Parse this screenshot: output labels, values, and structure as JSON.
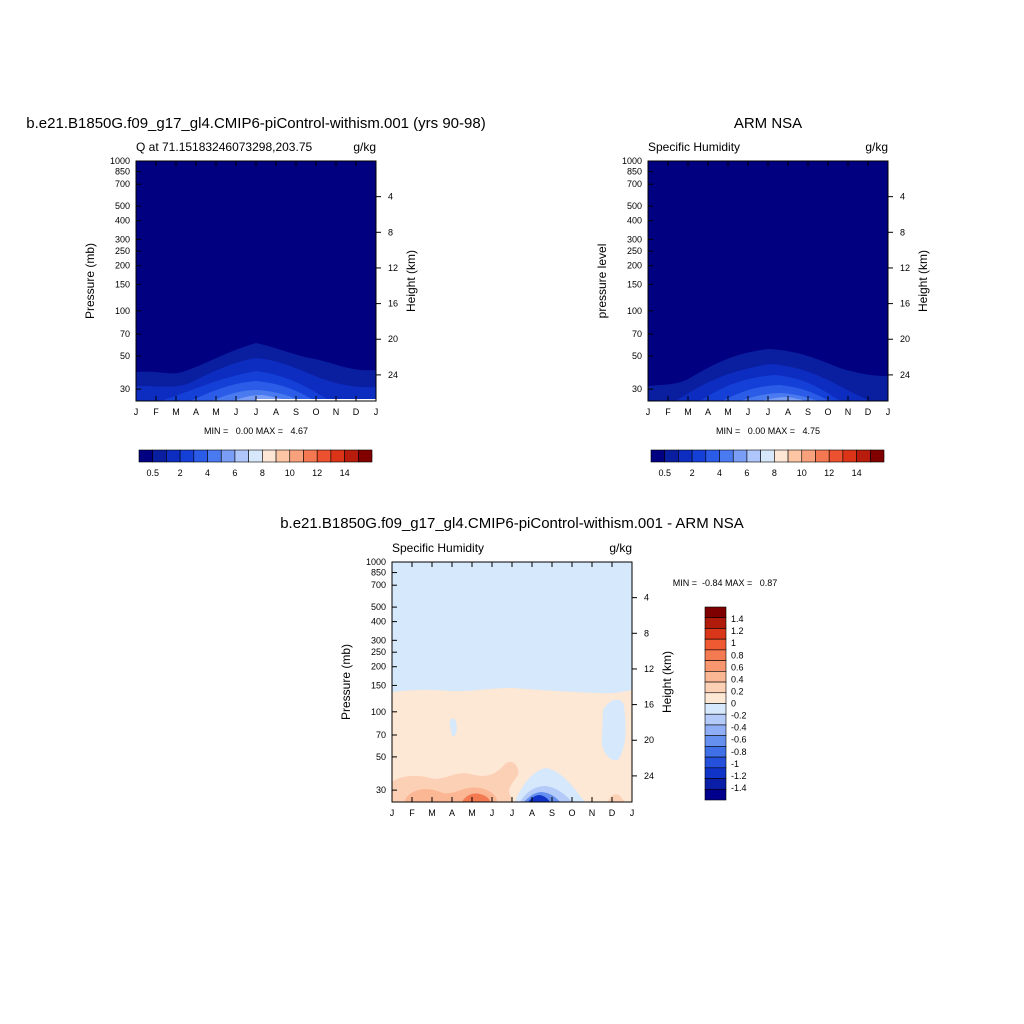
{
  "colors": {
    "abs_levels": [
      "#000080",
      "#0a1ea0",
      "#0d2cc0",
      "#1540d8",
      "#2b5ce8",
      "#4a7af0",
      "#7a9ef5",
      "#aec6fa",
      "#d8e8fb",
      "#fde6d4",
      "#fcc6a4",
      "#f9a07c",
      "#f47852",
      "#ed5230",
      "#dc3418",
      "#b81c0c",
      "#800000"
    ],
    "diff_levels": [
      "#00008c",
      "#0a1ea8",
      "#1033c8",
      "#2450dc",
      "#4070e8",
      "#6690f0",
      "#90aef5",
      "#b4caf8",
      "#d6e8fb",
      "#fde7d5",
      "#fcd0b4",
      "#fbb694",
      "#f89670",
      "#f47a52",
      "#ef5a32",
      "#d9361a",
      "#b01b0c",
      "#7e0000"
    ]
  },
  "panels": {
    "model": {
      "title": "b.e21.B1850G.f09_g17_gl4.CMIP6-piControl-withism.001 (yrs 90-98)",
      "left_string": "Q at 71.15183246073298,203.75",
      "right_string": "g/kg",
      "ylabel": "Pressure (mb)",
      "ylabel_right": "Height (km)",
      "minmax": "MIN =   0.00 MAX =   4.67"
    },
    "obs": {
      "title": "ARM NSA",
      "left_string": "Specific Humidity",
      "right_string": "g/kg",
      "ylabel": "pressure level",
      "ylabel_right": "Height (km)",
      "minmax": "MIN =   0.00 MAX =   4.75"
    },
    "diff": {
      "title": "b.e21.B1850G.f09_g17_gl4.CMIP6-piControl-withism.001 - ARM NSA",
      "left_string": "Specific Humidity",
      "right_string": "g/kg",
      "ylabel": "Pressure (mb)",
      "ylabel_right": "Height (km)",
      "minmax": "MIN =  -0.84 MAX =   0.87"
    }
  },
  "chart_data": [
    {
      "type": "heatmap",
      "panel": "model",
      "variable": "Specific Humidity",
      "units": "g/kg",
      "x_ticks": [
        "J",
        "F",
        "M",
        "A",
        "M",
        "J",
        "J",
        "A",
        "S",
        "O",
        "N",
        "D",
        "J"
      ],
      "y_ticks_pressure": [
        30,
        50,
        70,
        100,
        150,
        200,
        250,
        300,
        400,
        500,
        700,
        850,
        1000
      ],
      "y_ticks_height": [
        24,
        20,
        16,
        12,
        8,
        4
      ],
      "ylim": [
        1000,
        25
      ],
      "y_scale": "log",
      "colorbar_labels": [
        "0.5",
        "2",
        "4",
        "6",
        "8",
        "10",
        "12",
        "14"
      ],
      "min": 0.0,
      "max": 4.67
    },
    {
      "type": "heatmap",
      "panel": "obs",
      "variable": "Specific Humidity",
      "units": "g/kg",
      "x_ticks": [
        "J",
        "F",
        "M",
        "A",
        "M",
        "J",
        "J",
        "A",
        "S",
        "O",
        "N",
        "D",
        "J"
      ],
      "y_ticks_pressure": [
        30,
        50,
        70,
        100,
        150,
        200,
        250,
        300,
        400,
        500,
        700,
        850,
        1000
      ],
      "y_ticks_height": [
        24,
        20,
        16,
        12,
        8,
        4
      ],
      "ylim": [
        1000,
        25
      ],
      "y_scale": "log",
      "colorbar_labels": [
        "0.5",
        "2",
        "4",
        "6",
        "8",
        "10",
        "12",
        "14"
      ],
      "min": 0.0,
      "max": 4.75
    },
    {
      "type": "heatmap",
      "panel": "diff",
      "variable": "Specific Humidity",
      "units": "g/kg",
      "x_ticks": [
        "J",
        "F",
        "M",
        "A",
        "M",
        "J",
        "J",
        "A",
        "S",
        "O",
        "N",
        "D",
        "J"
      ],
      "y_ticks_pressure": [
        30,
        50,
        70,
        100,
        150,
        200,
        250,
        300,
        400,
        500,
        700,
        850,
        1000
      ],
      "y_ticks_height": [
        24,
        20,
        16,
        12,
        8,
        4
      ],
      "ylim": [
        1000,
        25
      ],
      "y_scale": "log",
      "colorbar_labels": [
        "1.4",
        "1.2",
        "1",
        "0.8",
        "0.6",
        "0.4",
        "0.2",
        "0",
        "-0.2",
        "-0.4",
        "-0.6",
        "-0.8",
        "-1",
        "-1.2",
        "-1.4"
      ],
      "min": -0.84,
      "max": 0.87
    }
  ]
}
